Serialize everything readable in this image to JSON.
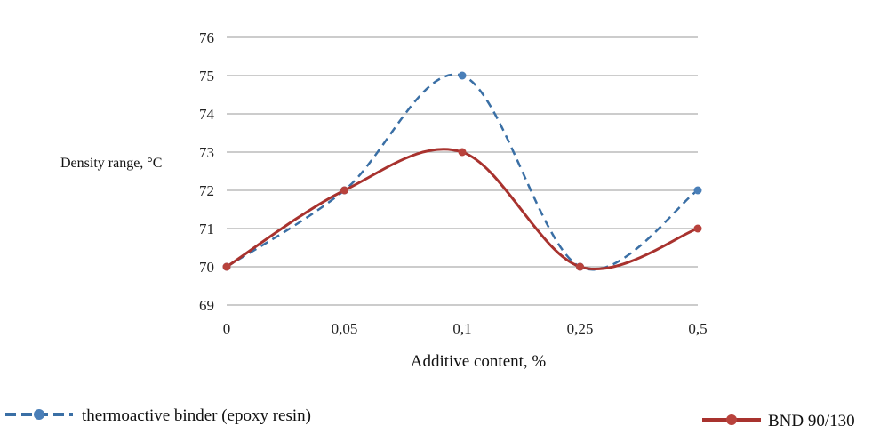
{
  "chart_data": {
    "type": "line",
    "categories": [
      "0",
      "0,05",
      "0,1",
      "0,25",
      "0,5"
    ],
    "xlabel": "Additive content, %",
    "ylabel": "Density range, °C",
    "ylim": [
      69,
      76
    ],
    "yticks": [
      69,
      70,
      71,
      72,
      73,
      74,
      75,
      76
    ],
    "grid": true,
    "legend_position": "bottom",
    "series": [
      {
        "name": "thermoactive binder (epoxy resin)",
        "values": [
          70,
          72,
          75,
          70,
          72
        ],
        "color": "#3a6fa5",
        "marker_color": "#4a7fb8",
        "line_style": "dashed",
        "smooth": true
      },
      {
        "name": "BND 90/130",
        "values": [
          70,
          72,
          73,
          70,
          71
        ],
        "color": "#a8322e",
        "marker_color": "#b8423c",
        "line_style": "solid",
        "smooth": true
      }
    ]
  }
}
